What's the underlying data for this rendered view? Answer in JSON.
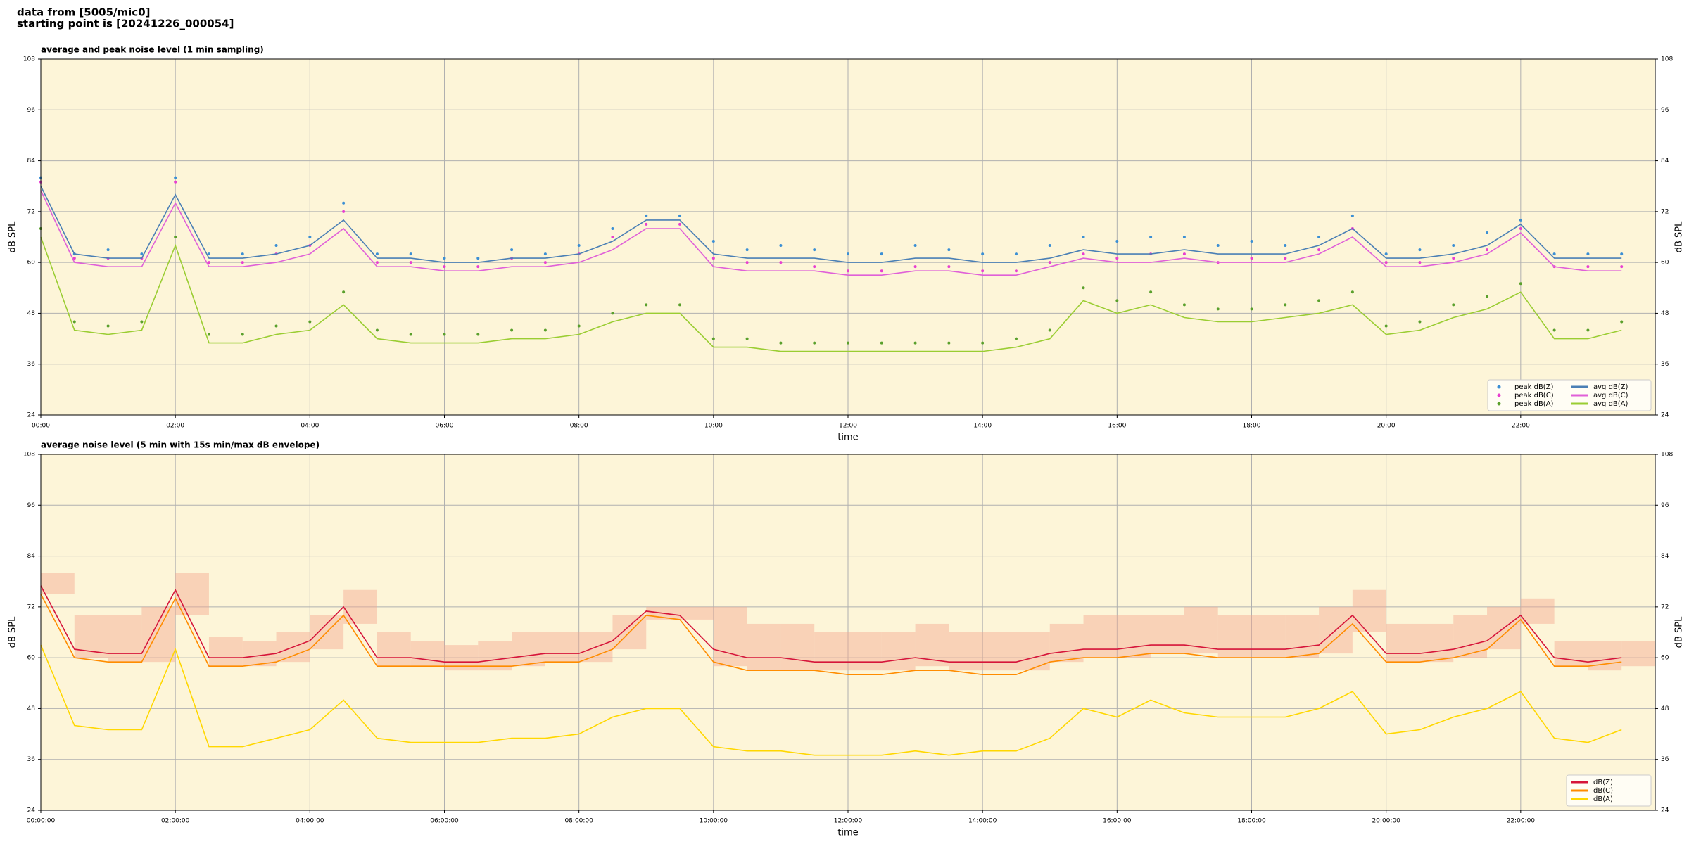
{
  "header": {
    "lines": [
      "data from [5005/mic0]",
      "starting point is [20241226_000054]"
    ]
  },
  "chart_data": [
    {
      "type": "line",
      "title": "average and peak noise level (1 min sampling)",
      "x_label": "time",
      "y_label": "dB SPL",
      "xlim": [
        0,
        24
      ],
      "xticks": [
        {
          "value": 0,
          "label": "00:00"
        },
        {
          "value": 2,
          "label": "02:00"
        },
        {
          "value": 4,
          "label": "04:00"
        },
        {
          "value": 6,
          "label": "06:00"
        },
        {
          "value": 8,
          "label": "08:00"
        },
        {
          "value": 10,
          "label": "10:00"
        },
        {
          "value": 12,
          "label": "12:00"
        },
        {
          "value": 14,
          "label": "14:00"
        },
        {
          "value": 16,
          "label": "16:00"
        },
        {
          "value": 18,
          "label": "18:00"
        },
        {
          "value": 20,
          "label": "20:00"
        },
        {
          "value": 22,
          "label": "22:00"
        }
      ],
      "ylim": [
        24,
        108
      ],
      "yticks": [
        24,
        36,
        48,
        60,
        72,
        84,
        96,
        108
      ],
      "grid": true,
      "legend": "lower right",
      "legend_columns": 2,
      "x": [
        0,
        0.5,
        1,
        1.5,
        2,
        2.5,
        3,
        3.5,
        4,
        4.5,
        5,
        5.5,
        6,
        6.5,
        7,
        7.5,
        8,
        8.5,
        9,
        9.5,
        10,
        10.5,
        11,
        11.5,
        12,
        12.5,
        13,
        13.5,
        14,
        14.5,
        15,
        15.5,
        16,
        16.5,
        17,
        17.5,
        18,
        18.5,
        19,
        19.5,
        20,
        20.5,
        21,
        21.5,
        22,
        22.5,
        23,
        23.5
      ],
      "series": [
        {
          "name": "peak dB(Z)",
          "color": "#3b8fd4",
          "style": "dots",
          "values": [
            80,
            62,
            63,
            62,
            80,
            62,
            62,
            64,
            66,
            74,
            62,
            62,
            61,
            61,
            63,
            62,
            64,
            68,
            71,
            71,
            65,
            63,
            64,
            63,
            62,
            62,
            64,
            63,
            62,
            62,
            64,
            66,
            65,
            66,
            66,
            64,
            65,
            64,
            66,
            71,
            62,
            63,
            64,
            67,
            70,
            62,
            62,
            62
          ]
        },
        {
          "name": "peak dB(C)",
          "color": "#e83fd0",
          "style": "dots",
          "values": [
            79,
            61,
            61,
            61,
            79,
            60,
            60,
            62,
            64,
            72,
            60,
            60,
            59,
            59,
            61,
            60,
            62,
            66,
            69,
            69,
            61,
            60,
            60,
            59,
            58,
            58,
            59,
            59,
            58,
            58,
            60,
            62,
            61,
            62,
            62,
            60,
            61,
            61,
            63,
            68,
            60,
            60,
            61,
            63,
            68,
            59,
            59,
            59
          ]
        },
        {
          "name": "peak dB(A)",
          "color": "#5aa02c",
          "style": "dots",
          "values": [
            68,
            46,
            45,
            46,
            66,
            43,
            43,
            45,
            46,
            53,
            44,
            43,
            43,
            43,
            44,
            44,
            45,
            48,
            50,
            50,
            42,
            42,
            41,
            41,
            41,
            41,
            41,
            41,
            41,
            42,
            44,
            54,
            51,
            53,
            50,
            49,
            49,
            50,
            51,
            53,
            45,
            46,
            50,
            52,
            55,
            44,
            44,
            46
          ]
        },
        {
          "name": "avg dB(Z)",
          "color": "#4a7fb5",
          "style": "line",
          "values": [
            78,
            62,
            61,
            61,
            76,
            61,
            61,
            62,
            64,
            70,
            61,
            61,
            60,
            60,
            61,
            61,
            62,
            65,
            70,
            70,
            62,
            61,
            61,
            61,
            60,
            60,
            61,
            61,
            60,
            60,
            61,
            63,
            62,
            62,
            63,
            62,
            62,
            62,
            64,
            68,
            61,
            61,
            62,
            64,
            69,
            61,
            61,
            61
          ]
        },
        {
          "name": "avg dB(C)",
          "color": "#e060d8",
          "style": "line",
          "values": [
            77,
            60,
            59,
            59,
            74,
            59,
            59,
            60,
            62,
            68,
            59,
            59,
            58,
            58,
            59,
            59,
            60,
            63,
            68,
            68,
            59,
            58,
            58,
            58,
            57,
            57,
            58,
            58,
            57,
            57,
            59,
            61,
            60,
            60,
            61,
            60,
            60,
            60,
            62,
            66,
            59,
            59,
            60,
            62,
            67,
            59,
            58,
            58
          ]
        },
        {
          "name": "avg dB(A)",
          "color": "#9acd32",
          "style": "line",
          "values": [
            66,
            44,
            43,
            44,
            64,
            41,
            41,
            43,
            44,
            50,
            42,
            41,
            41,
            41,
            42,
            42,
            43,
            46,
            48,
            48,
            40,
            40,
            39,
            39,
            39,
            39,
            39,
            39,
            39,
            40,
            42,
            51,
            48,
            50,
            47,
            46,
            46,
            47,
            48,
            50,
            43,
            44,
            47,
            49,
            53,
            42,
            42,
            44
          ]
        }
      ]
    },
    {
      "type": "line",
      "title": "average noise level (5 min with 15s min/max dB envelope)",
      "x_label": "time",
      "y_label": "dB SPL",
      "xlim": [
        0,
        24
      ],
      "xticks": [
        {
          "value": 0,
          "label": "00:00:00"
        },
        {
          "value": 2,
          "label": "02:00:00"
        },
        {
          "value": 4,
          "label": "04:00:00"
        },
        {
          "value": 6,
          "label": "06:00:00"
        },
        {
          "value": 8,
          "label": "08:00:00"
        },
        {
          "value": 10,
          "label": "10:00:00"
        },
        {
          "value": 12,
          "label": "12:00:00"
        },
        {
          "value": 14,
          "label": "14:00:00"
        },
        {
          "value": 16,
          "label": "16:00:00"
        },
        {
          "value": 18,
          "label": "18:00:00"
        },
        {
          "value": 20,
          "label": "20:00:00"
        },
        {
          "value": 22,
          "label": "22:00:00"
        }
      ],
      "ylim": [
        24,
        108
      ],
      "yticks": [
        24,
        36,
        48,
        60,
        72,
        84,
        96,
        108
      ],
      "grid": true,
      "legend": "lower right",
      "legend_columns": 1,
      "x": [
        0,
        0.5,
        1,
        1.5,
        2,
        2.5,
        3,
        3.5,
        4,
        4.5,
        5,
        5.5,
        6,
        6.5,
        7,
        7.5,
        8,
        8.5,
        9,
        9.5,
        10,
        10.5,
        11,
        11.5,
        12,
        12.5,
        13,
        13.5,
        14,
        14.5,
        15,
        15.5,
        16,
        16.5,
        17,
        17.5,
        18,
        18.5,
        19,
        19.5,
        20,
        20.5,
        21,
        21.5,
        22,
        22.5,
        23,
        23.5
      ],
      "envelope": {
        "color": "#f4a890",
        "min": [
          75,
          60,
          59,
          59,
          70,
          58,
          58,
          59,
          62,
          68,
          58,
          58,
          57,
          57,
          58,
          59,
          59,
          62,
          69,
          69,
          58,
          57,
          57,
          57,
          57,
          57,
          58,
          57,
          57,
          57,
          59,
          60,
          60,
          61,
          61,
          60,
          60,
          60,
          61,
          66,
          59,
          59,
          60,
          62,
          68,
          58,
          57,
          58
        ],
        "max": [
          80,
          70,
          70,
          72,
          80,
          65,
          64,
          66,
          70,
          76,
          66,
          64,
          63,
          64,
          66,
          66,
          66,
          70,
          72,
          72,
          72,
          68,
          68,
          66,
          66,
          66,
          68,
          66,
          66,
          66,
          68,
          70,
          70,
          70,
          72,
          70,
          70,
          70,
          72,
          76,
          68,
          68,
          70,
          72,
          74,
          64,
          64,
          64
        ]
      },
      "series": [
        {
          "name": "dB(Z)",
          "color": "#d6153a",
          "style": "line",
          "values": [
            77,
            62,
            61,
            61,
            76,
            60,
            60,
            61,
            64,
            72,
            60,
            60,
            59,
            59,
            60,
            61,
            61,
            64,
            71,
            70,
            62,
            60,
            60,
            59,
            59,
            59,
            60,
            59,
            59,
            59,
            61,
            62,
            62,
            63,
            63,
            62,
            62,
            62,
            63,
            70,
            61,
            61,
            62,
            64,
            70,
            60,
            59,
            60
          ]
        },
        {
          "name": "dB(C)",
          "color": "#ff8c00",
          "style": "line",
          "values": [
            75,
            60,
            59,
            59,
            74,
            58,
            58,
            59,
            62,
            70,
            58,
            58,
            58,
            58,
            58,
            59,
            59,
            62,
            70,
            69,
            59,
            57,
            57,
            57,
            56,
            56,
            57,
            57,
            56,
            56,
            59,
            60,
            60,
            61,
            61,
            60,
            60,
            60,
            61,
            68,
            59,
            59,
            60,
            62,
            69,
            58,
            58,
            59
          ]
        },
        {
          "name": "dB(A)",
          "color": "#ffd700",
          "style": "line",
          "values": [
            63,
            44,
            43,
            43,
            62,
            39,
            39,
            41,
            43,
            50,
            41,
            40,
            40,
            40,
            41,
            41,
            42,
            46,
            48,
            48,
            39,
            38,
            38,
            37,
            37,
            37,
            38,
            37,
            38,
            38,
            41,
            48,
            46,
            50,
            47,
            46,
            46,
            46,
            48,
            52,
            42,
            43,
            46,
            48,
            52,
            41,
            40,
            43
          ]
        }
      ]
    }
  ]
}
